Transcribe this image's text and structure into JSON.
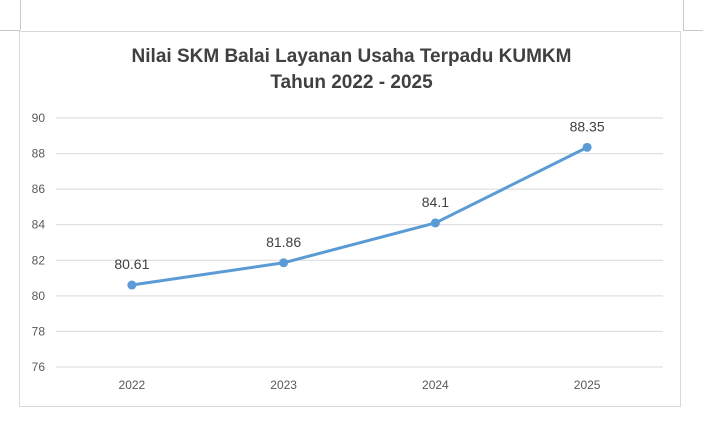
{
  "chart_data": {
    "type": "line",
    "title": "Nilai SKM Balai Layanan Usaha Terpadu KUMKM",
    "subtitle": "Tahun 2022 - 2025",
    "categories": [
      "2022",
      "2023",
      "2024",
      "2025"
    ],
    "series": [
      {
        "values": [
          80.61,
          81.86,
          84.1,
          88.35
        ],
        "color": "#5b9bd5"
      }
    ],
    "data_labels": [
      "80.61",
      "81.86",
      "84.1",
      "88.35"
    ],
    "ylim": [
      76,
      90
    ],
    "yticks": [
      "76",
      "78",
      "80",
      "82",
      "84",
      "86",
      "88",
      "90"
    ],
    "grid": true,
    "gridline_color": "#d9d9d9",
    "legend": "none"
  }
}
